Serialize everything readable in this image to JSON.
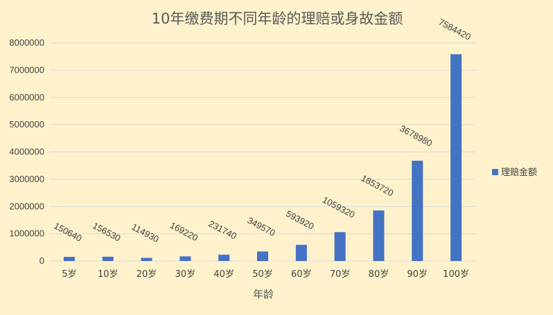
{
  "chart_data": {
    "type": "bar",
    "title": "10年缴费期不同年龄的理赔或身故金额",
    "xlabel": "年龄",
    "ylabel": "",
    "categories": [
      "5岁",
      "10岁",
      "20岁",
      "30岁",
      "40岁",
      "50岁",
      "60岁",
      "70岁",
      "80岁",
      "90岁",
      "100岁"
    ],
    "series": [
      {
        "name": "理赔金额",
        "values": [
          150640,
          156530,
          114930,
          169220,
          231740,
          349570,
          593920,
          1059320,
          1853720,
          3678980,
          7584420
        ],
        "color": "#4472c4"
      }
    ],
    "data_labels": [
      "150640",
      "156530",
      "114930",
      "169220",
      "231740",
      "349570",
      "593920",
      "1059320",
      "1853720",
      "3678980",
      "7584420"
    ],
    "ylim": [
      0,
      8000000
    ],
    "yticks": [
      "0",
      "1000000",
      "2000000",
      "3000000",
      "4000000",
      "5000000",
      "6000000",
      "7000000",
      "8000000"
    ],
    "ytick_values": [
      0,
      1000000,
      2000000,
      3000000,
      4000000,
      5000000,
      6000000,
      7000000,
      8000000
    ],
    "grid": true,
    "legend_position": "right",
    "colors": {
      "background": "#fdf2cc",
      "gridline": "#d9d9d9",
      "bar": "#4472c4"
    }
  }
}
